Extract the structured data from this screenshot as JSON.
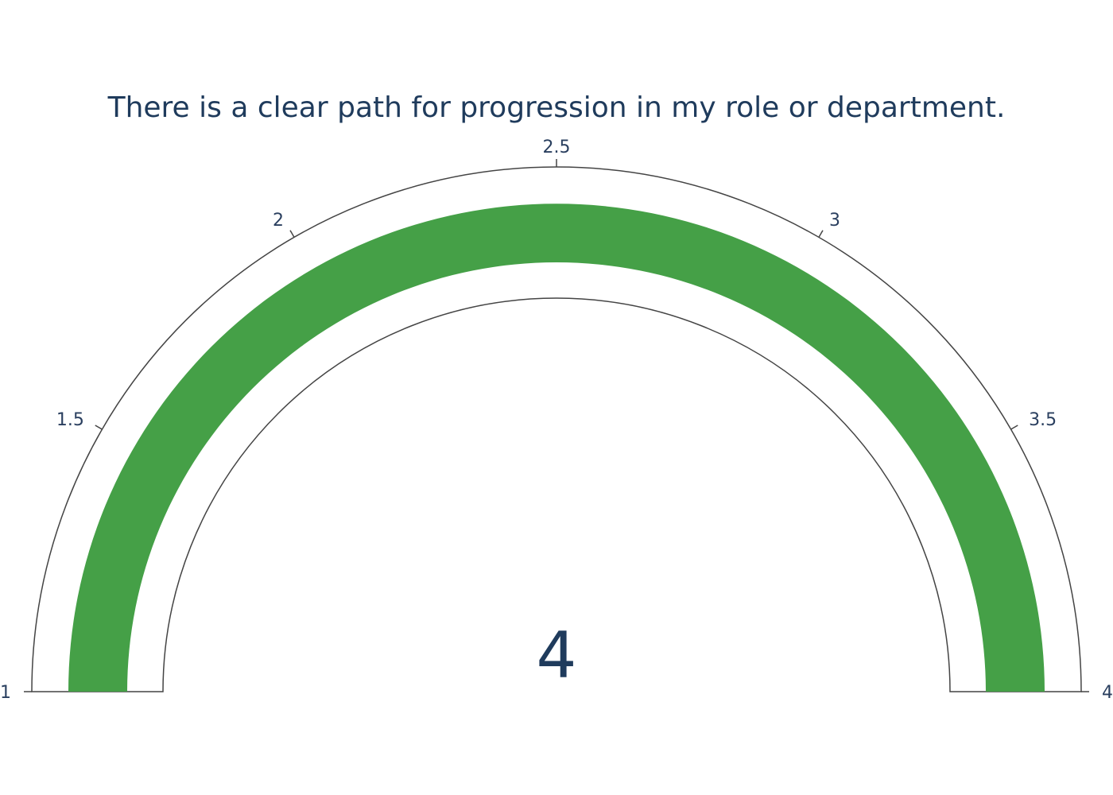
{
  "chart_data": {
    "type": "gauge",
    "title": "There is a clear path for progression in my role or department.",
    "value": 4,
    "value_label": "4",
    "range": [
      1,
      4
    ],
    "ticks": [
      1,
      1.5,
      2,
      2.5,
      3,
      3.5,
      4
    ],
    "tick_labels": [
      "1",
      "1.5",
      "2",
      "2.5",
      "3",
      "3.5",
      "4"
    ],
    "bar_color": "#45a047",
    "outline_color": "#444444",
    "background_color": "#ffffff"
  }
}
